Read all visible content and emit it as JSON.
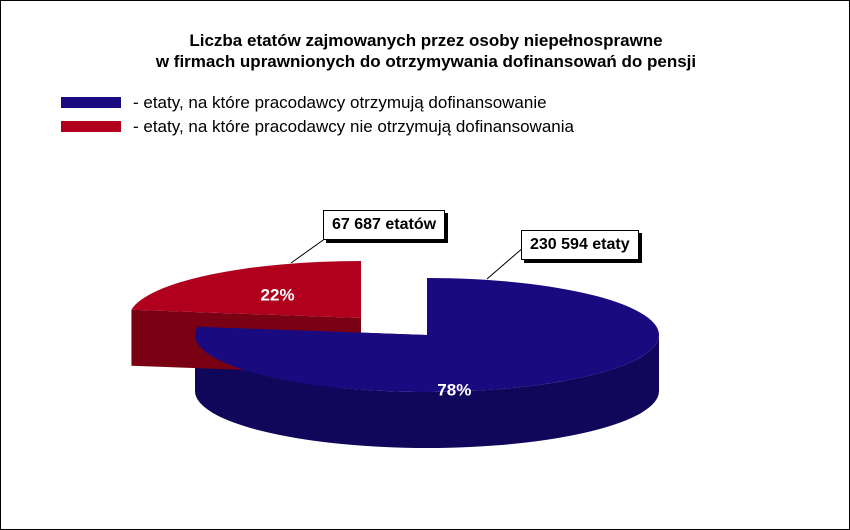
{
  "chart_data": {
    "type": "pie",
    "title_line1": "Liczba etatów zajmowanych przez osoby niepełnosprawne",
    "title_line2": "w firmach uprawnionych do otrzymywania dofinansowań do pensji",
    "series": [
      {
        "name": "- etaty, na które pracodawcy otrzymują dofinansowanie",
        "value": 230594,
        "value_label": "230 594 etaty",
        "percent": 78,
        "percent_label": "78%",
        "color": "#1a0a80",
        "side_color": "#10075a"
      },
      {
        "name": "- etaty, na które pracodawcy nie otrzymują dofinansowania",
        "value": 67687,
        "value_label": "67 687 etatów",
        "percent": 22,
        "percent_label": "22%",
        "color": "#b0001e",
        "side_color": "#7a0014"
      }
    ],
    "legend_position": "top-left",
    "exploded": true,
    "three_d": true
  }
}
